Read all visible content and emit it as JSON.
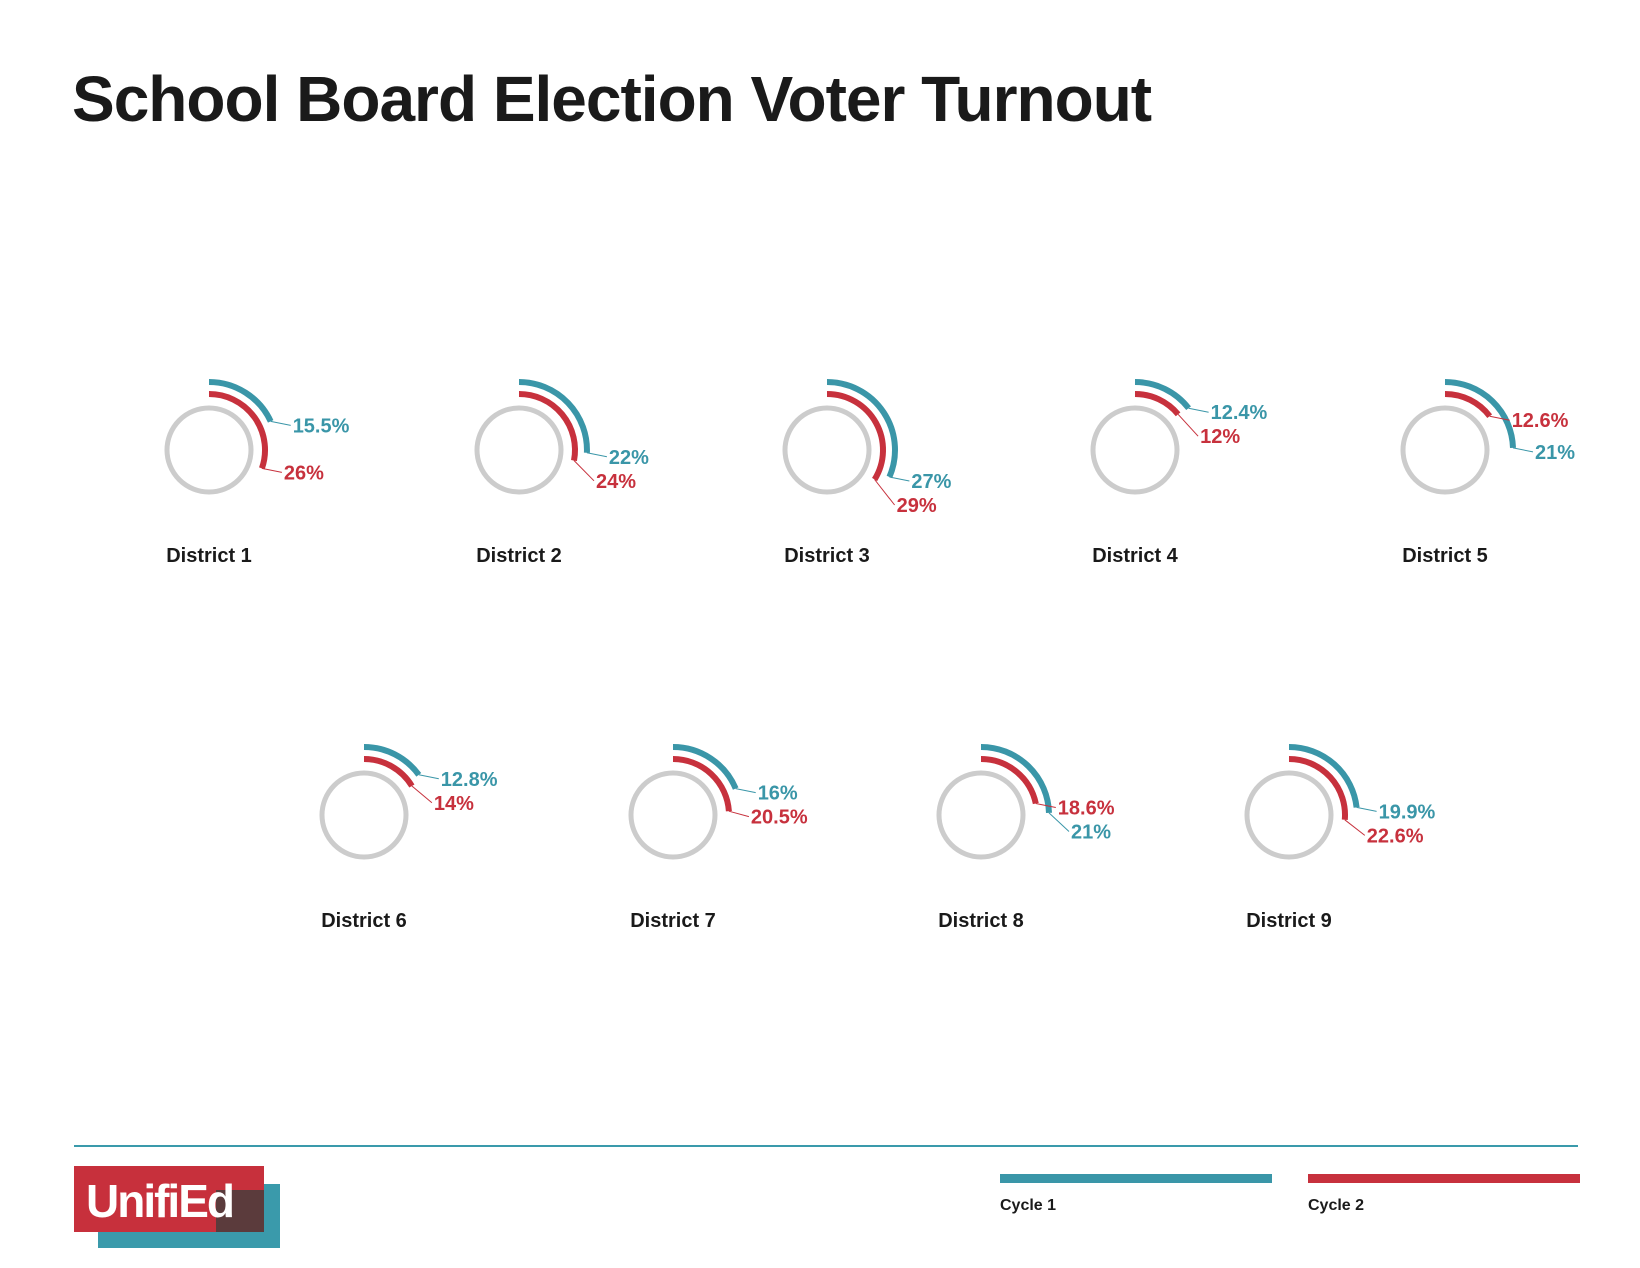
{
  "title": "School Board Election Voter Turnout",
  "logo": {
    "text": "UnifiEd"
  },
  "colors": {
    "cycle1": "#3a96a8",
    "cycle2": "#c7313d",
    "ring": "#cccccc",
    "text": "#1a1a1a"
  },
  "legend": [
    {
      "label": "Cycle 1",
      "color": "#3a96a8"
    },
    {
      "label": "Cycle 2",
      "color": "#c7313d"
    }
  ],
  "chart_data": {
    "type": "radial-arc",
    "series": [
      {
        "name": "Cycle 1",
        "color": "#3a96a8"
      },
      {
        "name": "Cycle 2",
        "color": "#c7313d"
      }
    ],
    "districts": [
      {
        "name": "District 1",
        "cycle1": 15.5,
        "cycle2": 26,
        "labels": [
          "15.5%",
          "26%"
        ]
      },
      {
        "name": "District 2",
        "cycle1": 22,
        "cycle2": 24,
        "labels": [
          "22%",
          "24%"
        ]
      },
      {
        "name": "District 3",
        "cycle1": 27,
        "cycle2": 29,
        "labels": [
          "27%",
          "29%"
        ]
      },
      {
        "name": "District 4",
        "cycle1": 12.4,
        "cycle2": 12,
        "labels": [
          "12.4%",
          "12%"
        ]
      },
      {
        "name": "District 5",
        "cycle1": 21,
        "cycle2": 12.6,
        "labels": [
          "21%",
          "12.6%"
        ]
      },
      {
        "name": "District 6",
        "cycle1": 12.8,
        "cycle2": 14,
        "labels": [
          "12.8%",
          "14%"
        ]
      },
      {
        "name": "District 7",
        "cycle1": 16,
        "cycle2": 20.5,
        "labels": [
          "16%",
          "20.5%"
        ]
      },
      {
        "name": "District 8",
        "cycle1": 21,
        "cycle2": 18.6,
        "labels": [
          "21%",
          "18.6%"
        ]
      },
      {
        "name": "District 9",
        "cycle1": 19.9,
        "cycle2": 22.6,
        "labels": [
          "19.9%",
          "22.6%"
        ]
      }
    ]
  }
}
